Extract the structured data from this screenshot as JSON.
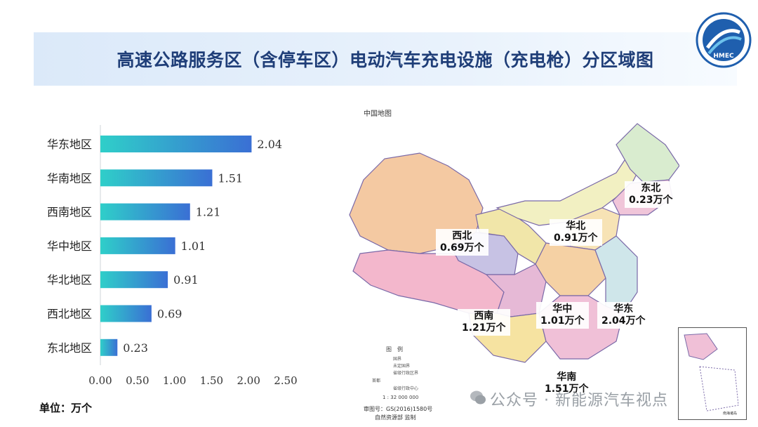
{
  "header": {
    "title": "高速公路服务区（含停车区）电动汽车充电设施（充电枪）分区域图",
    "logo_text": "HMEC"
  },
  "chart_data": {
    "type": "bar",
    "orientation": "horizontal",
    "categories": [
      "华东地区",
      "华南地区",
      "西南地区",
      "华中地区",
      "华北地区",
      "西北地区",
      "东北地区"
    ],
    "values": [
      2.04,
      1.51,
      1.21,
      1.01,
      0.91,
      0.69,
      0.23
    ],
    "value_labels": [
      "2.04",
      "1.51",
      "1.21",
      "1.01",
      "0.91",
      "0.69",
      "0.23"
    ],
    "xlim": [
      0,
      2.5
    ],
    "xticks": [
      "0.00",
      "0.50",
      "1.00",
      "1.50",
      "2.00",
      "2.50"
    ],
    "bar_gradient": [
      "#2fcfc9",
      "#3a6fd4"
    ],
    "grid": false
  },
  "unit": "单位：万个",
  "map": {
    "title": "中国地图",
    "legend_title": "图　例",
    "legend_items": [
      "国界",
      "未定国界",
      "省级行政区界",
      "首都",
      "省级行政中心"
    ],
    "scale": "1 : 32 000 000",
    "approval_no": "审图号：GS(2016)1580号",
    "publisher": "自然资源部 监制",
    "inset_label": "南海诸岛",
    "callouts": [
      {
        "region": "东北",
        "value": "0.23万个"
      },
      {
        "region": "华北",
        "value": "0.91万个"
      },
      {
        "region": "西北",
        "value": "0.69万个"
      },
      {
        "region": "西南",
        "value": "1.21万个"
      },
      {
        "region": "华中",
        "value": "1.01万个"
      },
      {
        "region": "华东",
        "value": "2.04万个"
      },
      {
        "region": "华南",
        "value": "1.51万个"
      }
    ]
  },
  "watermark": "公众号 · 新能源汽车视点"
}
